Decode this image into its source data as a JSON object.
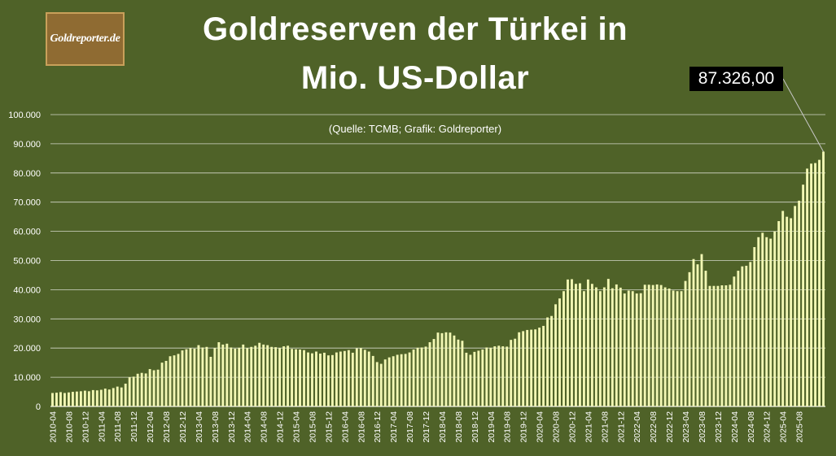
{
  "logo": {
    "text": "Goldreporter.de"
  },
  "chart_data": {
    "type": "bar",
    "title": "Goldreserven der Türkei in Mio. US-Dollar",
    "title_lines": [
      "Goldreserven der Türkei in",
      "Mio. US-Dollar"
    ],
    "subtitle": "(Quelle: TCMB; Grafik: Goldreporter)",
    "xlabel": "",
    "ylabel": "",
    "ylim": [
      0,
      100000
    ],
    "yticks": [
      0,
      10000,
      20000,
      30000,
      40000,
      50000,
      60000,
      70000,
      80000,
      90000,
      100000
    ],
    "ytick_labels": [
      "0",
      "10.000",
      "20.000",
      "30.000",
      "40.000",
      "50.000",
      "60.000",
      "70.000",
      "80.000",
      "90.000",
      "100.000"
    ],
    "grid": true,
    "bar_color": "#f2f7b4",
    "background_color": "#4f6228",
    "start_month": "2010-04",
    "x_tick_labels": [
      "2010-04",
      "2010-08",
      "2010-12",
      "2011-04",
      "2011-08",
      "2011-12",
      "2012-04",
      "2012-08",
      "2012-12",
      "2013-04",
      "2013-08",
      "2013-12",
      "2014-04",
      "2014-08",
      "2014-12",
      "2015-04",
      "2015-08",
      "2015-12",
      "2016-04",
      "2016-08",
      "2016-12",
      "2017-04",
      "2017-08",
      "2017-12",
      "2018-04",
      "2018-08",
      "2018-12",
      "2019-04",
      "2019-08",
      "2019-12",
      "2020-04",
      "2020-08",
      "2020-12",
      "2021-04",
      "2021-08",
      "2021-12",
      "2022-04",
      "2022-08",
      "2022-12",
      "2023-04",
      "2023-08",
      "2023-12",
      "2024-04",
      "2024-08",
      "2024-12",
      "2025-04",
      "2025-08"
    ],
    "values": [
      4600,
      4700,
      4900,
      4600,
      4800,
      5000,
      5100,
      5200,
      5400,
      5200,
      5600,
      5500,
      5700,
      6100,
      5800,
      6300,
      6800,
      6500,
      7800,
      10000,
      10200,
      11200,
      11500,
      11300,
      12800,
      12400,
      12600,
      15000,
      15600,
      17200,
      17500,
      18000,
      19200,
      19600,
      20000,
      19800,
      21000,
      20200,
      20400,
      17000,
      20000,
      22000,
      21200,
      21500,
      20200,
      19800,
      20100,
      21200,
      20000,
      20400,
      20800,
      21800,
      21200,
      21000,
      20400,
      20300,
      20000,
      20600,
      20800,
      19700,
      19600,
      19500,
      19300,
      18500,
      18200,
      18800,
      18100,
      18400,
      17500,
      17600,
      18500,
      18800,
      19000,
      19300,
      18400,
      19900,
      20000,
      19400,
      18800,
      17300,
      15200,
      14600,
      16100,
      16800,
      17200,
      17700,
      17900,
      18000,
      18500,
      19500,
      20100,
      20200,
      20500,
      22000,
      23100,
      25300,
      25100,
      25400,
      25300,
      24300,
      22900,
      22500,
      18400,
      17700,
      18700,
      19100,
      19500,
      20200,
      20100,
      20600,
      20800,
      20600,
      20500,
      22800,
      23200,
      25400,
      25800,
      26200,
      26300,
      26400,
      27000,
      27600,
      30500,
      31000,
      35000,
      37000,
      39500,
      43500,
      43600,
      42000,
      42200,
      39500,
      43500,
      42000,
      40800,
      39500,
      40800,
      43700,
      40500,
      41800,
      40700,
      38700,
      39700,
      39500,
      38700,
      38800,
      41700,
      41700,
      41600,
      41800,
      41600,
      40800,
      40400,
      39700,
      39500,
      39500,
      43000,
      46000,
      50500,
      48700,
      52200,
      46500,
      41300,
      41300,
      41300,
      41500,
      41500,
      41700,
      44500,
      46500,
      48000,
      48200,
      49500,
      54600,
      58000,
      59500,
      58000,
      57500,
      60000,
      63500,
      67000,
      65000,
      64500,
      68700,
      70500,
      76000,
      81500,
      83200,
      83400,
      84500,
      87326
    ],
    "annotation": {
      "text": "87.326,00",
      "label_for_last_bar": true
    }
  }
}
